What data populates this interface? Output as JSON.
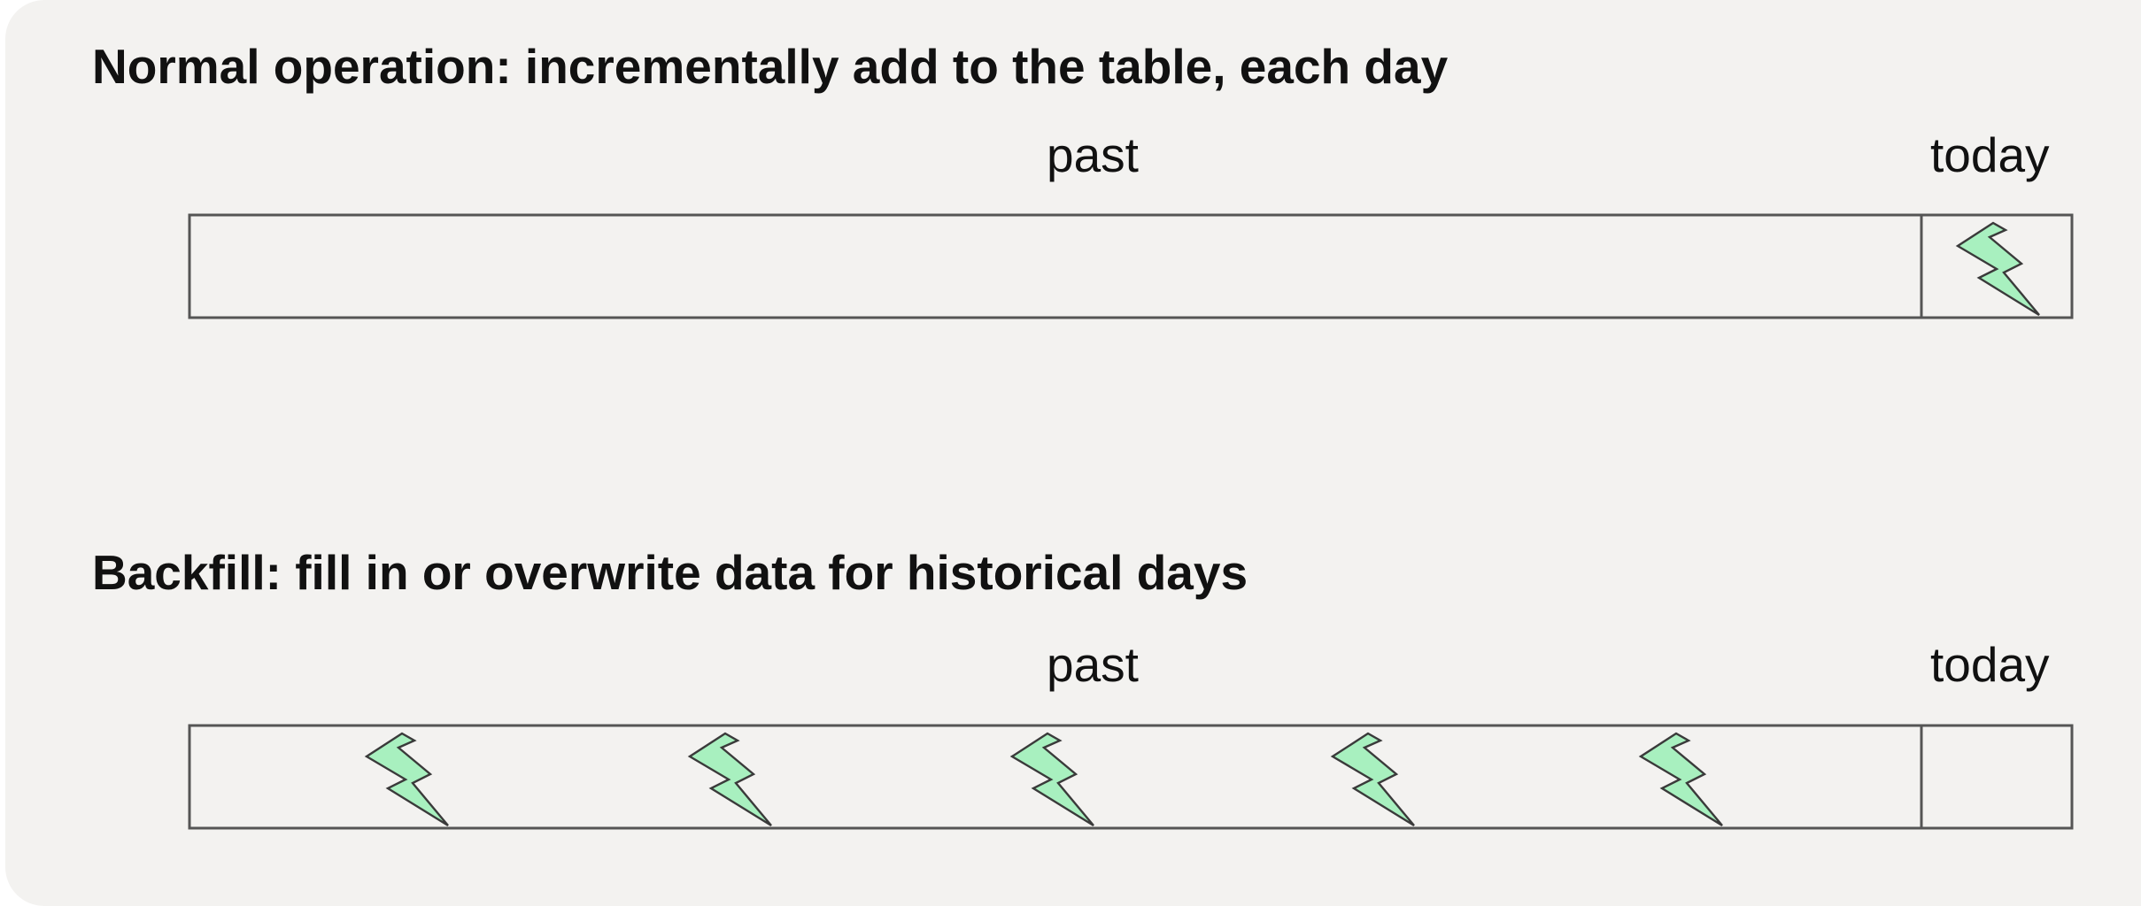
{
  "normal": {
    "title": "Normal operation: incrementally add to the table, each day",
    "past_label": "past",
    "today_label": "today"
  },
  "backfill": {
    "title": "Backfill: fill in or overwrite data for historical days",
    "past_label": "past",
    "today_label": "today"
  },
  "colors": {
    "card_background": "#f3f2f0",
    "bolt_fill": "#a8f0bf",
    "outline": "#555555"
  },
  "icons": [
    "lightning-bolt-icon"
  ]
}
